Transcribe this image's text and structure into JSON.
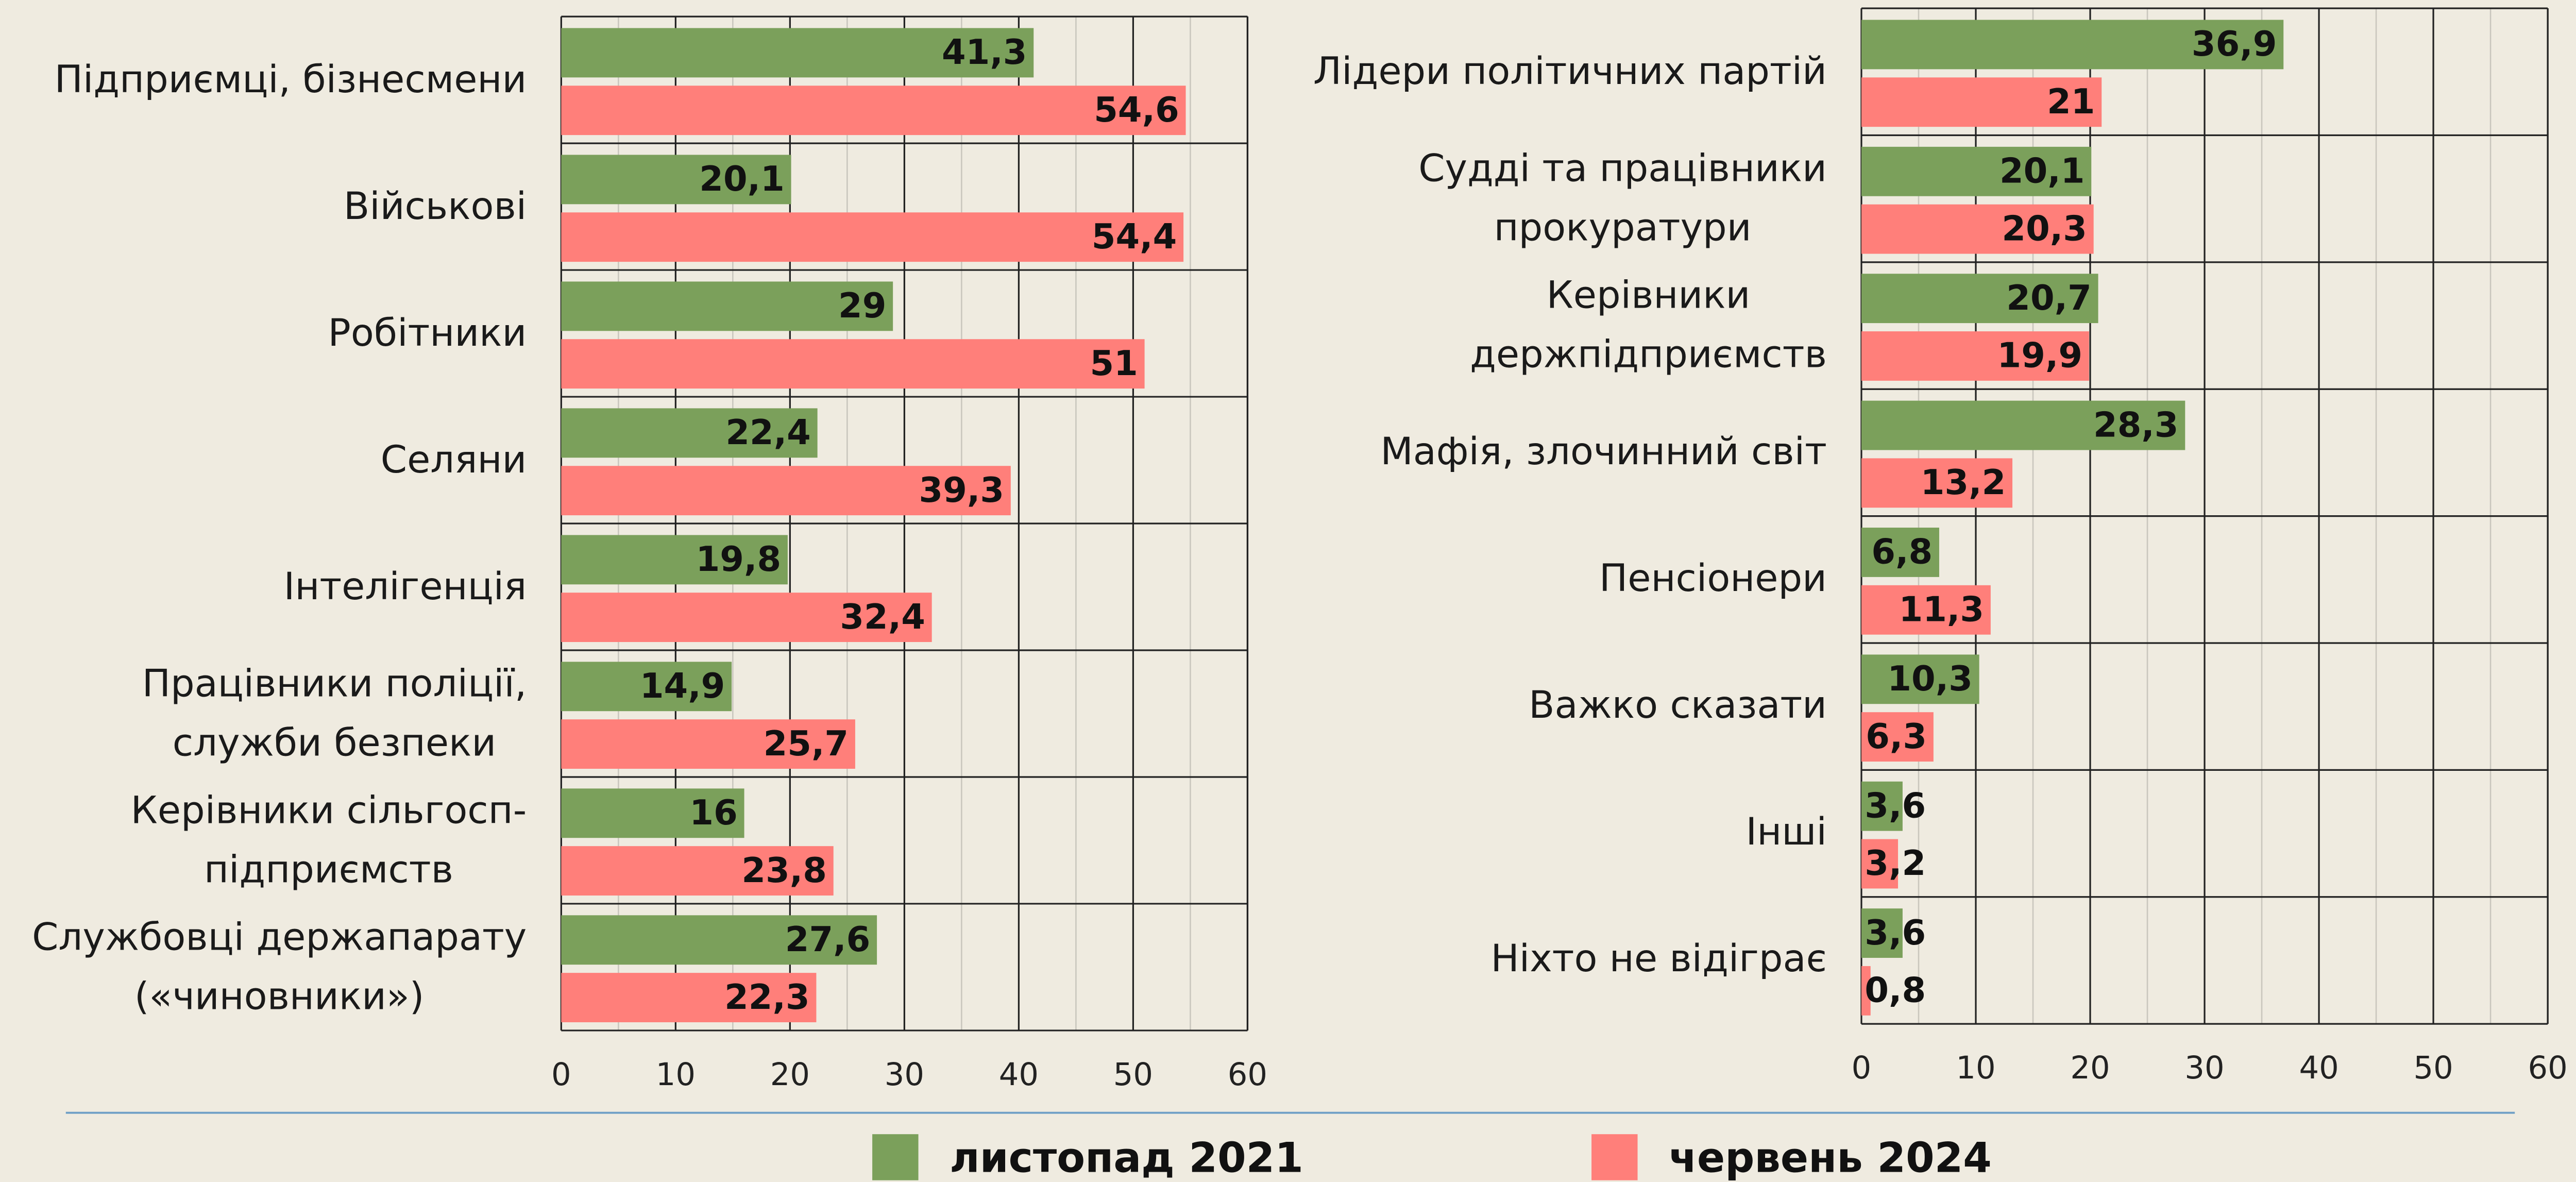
{
  "chart_data": [
    {
      "type": "hbar",
      "categories": [
        "Підприємці, бізнесмени",
        "Військові",
        "Робітники",
        "Селяни",
        "Інтелігенція",
        "Працівники поліції,\nслужби безпеки",
        "Керівники сільгосп-\nпідприємств",
        "Службовці держапарату\n(«чиновники»)"
      ],
      "series": [
        {
          "name": "листопад 2021",
          "color": "#7ba05b",
          "values": [
            41.3,
            20.1,
            29,
            22.4,
            19.8,
            14.9,
            16,
            27.6
          ],
          "value_labels": [
            "41,3",
            "20,1",
            "29",
            "22,4",
            "19,8",
            "14,9",
            "16",
            "27,6"
          ]
        },
        {
          "name": "червень 2024",
          "color": "#ff7f7a",
          "values": [
            54.6,
            54.4,
            51,
            39.3,
            32.4,
            25.7,
            23.8,
            22.3
          ],
          "value_labels": [
            "54,6",
            "54,4",
            "51",
            "39,3",
            "32,4",
            "25,7",
            "23,8",
            "22,3"
          ]
        }
      ],
      "xlim": [
        0,
        60
      ],
      "xticks": [
        0,
        10,
        20,
        30,
        40,
        50,
        60
      ],
      "xminor": [
        5,
        15,
        25,
        35,
        45,
        55
      ],
      "grid": true
    },
    {
      "type": "hbar",
      "categories": [
        "Лідери політичних партій",
        "Судді та працівники\nпрокуратури",
        "Керівники\nдержпідприємств",
        "Мафія, злочинний світ",
        "Пенсіонери",
        "Важко сказати",
        "Інші",
        "Ніхто не відіграє"
      ],
      "series": [
        {
          "name": "листопад 2021",
          "color": "#7ba05b",
          "values": [
            36.9,
            20.1,
            20.7,
            28.3,
            6.8,
            10.3,
            3.6,
            3.6
          ],
          "value_labels": [
            "36,9",
            "20,1",
            "20,7",
            "28,3",
            "6,8",
            "10,3",
            "3,6",
            "3,6"
          ]
        },
        {
          "name": "червень 2024",
          "color": "#ff7f7a",
          "values": [
            21,
            20.3,
            19.9,
            13.2,
            11.3,
            6.3,
            3.2,
            0.8
          ],
          "value_labels": [
            "21",
            "20,3",
            "19,9",
            "13,2",
            "11,3",
            "6,3",
            "3,2",
            "0,8"
          ]
        }
      ],
      "xlim": [
        0,
        60
      ],
      "xticks": [
        0,
        10,
        20,
        30,
        40,
        50,
        60
      ],
      "xminor": [
        5,
        15,
        25,
        35,
        45,
        55
      ],
      "grid": true
    }
  ]
}
